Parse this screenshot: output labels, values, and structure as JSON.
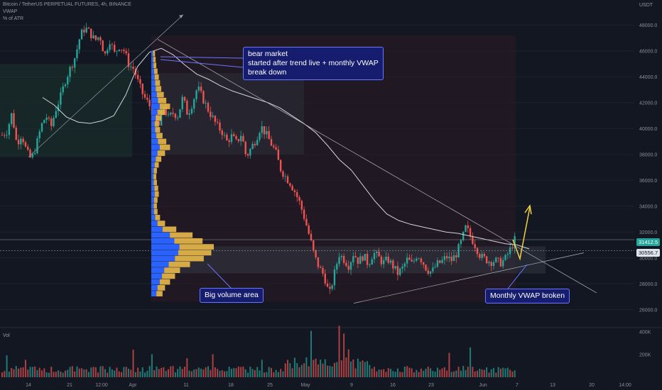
{
  "header": {
    "symbol": "Bitcoin / TetherUS PERPETUAL FUTURES, 4h, BINANCE",
    "indicator1": "VWAP",
    "indicator2": "% of ATR"
  },
  "axis": {
    "currency": "USDT",
    "volume_label": "Vol"
  },
  "annotations": {
    "bear_market": [
      "bear market",
      "started after trend live + monthly VWAP",
      "break down"
    ],
    "big_volume": "Big volume area",
    "vwap_broken": "Monthly VWAP broken"
  },
  "price_tags": {
    "green": "31412.5",
    "white": "30556.7"
  },
  "colors": {
    "background": "#131722",
    "up": "#26a69a",
    "down": "#ef5350",
    "callout_bg": "#161d6e",
    "callout_border": "#6b76ff",
    "arrow": "#f5d142",
    "volume_profile": "#2962ff",
    "volume_profile_hv": "#e9b949"
  },
  "chart_data": {
    "type": "candlestick",
    "price_axis": {
      "ticks": [
        "48000.0",
        "46000.0",
        "44000.0",
        "42000.0",
        "40000.0",
        "38000.0",
        "36000.0",
        "34000.0",
        "32000.0",
        "30000.0",
        "28000.0",
        "26000.0"
      ],
      "range": [
        25000,
        49500
      ]
    },
    "volume_axis": {
      "ticks": [
        "400K",
        "200K"
      ],
      "range": [
        0,
        420000
      ]
    },
    "time_axis": {
      "ticks": [
        "14",
        "21",
        "12:00",
        "Apr",
        "11",
        "18",
        "25",
        "May",
        "9",
        "16",
        "23",
        "Jun",
        "7",
        "13",
        "20",
        "14:00"
      ]
    },
    "series": [
      {
        "name": "price_path",
        "values": [
          39500,
          39800,
          41200,
          38800,
          39600,
          38200,
          37600,
          38700,
          40200,
          41000,
          40100,
          41500,
          42500,
          43800,
          44700,
          45600,
          47200,
          47800,
          47400,
          46800,
          47200,
          45600,
          46900,
          45800,
          46400,
          46000,
          44900,
          44600,
          43400,
          42500,
          41900,
          41200,
          40000,
          41800,
          40800,
          41200,
          41000,
          42400,
          41100,
          42000,
          43200,
          42400,
          41600,
          40900,
          40200,
          39800,
          39000,
          39400,
          38900,
          39600,
          37800,
          38500,
          39200,
          40200,
          39600,
          38900,
          38200,
          36900,
          36300,
          35800,
          35100,
          34200,
          33000,
          31600,
          30100,
          29200,
          28600,
          27100,
          28700,
          30300,
          29900,
          29400,
          30400,
          29700,
          30200,
          29500,
          30400,
          30100,
          29600,
          29900,
          29400,
          28800,
          29200,
          29900,
          29500,
          30300,
          29800,
          29100,
          28900,
          29500,
          29700,
          30100,
          29800,
          30300,
          31200,
          32400,
          31600,
          30900,
          30100,
          29900,
          29700,
          29800,
          29600,
          29900,
          30600,
          31400
        ],
        "volatility": 420
      },
      {
        "name": "VWAP",
        "values": [
          42400,
          41800,
          40900,
          40500,
          40400,
          40600,
          41000,
          42600,
          44800,
          45900,
          46200,
          45700,
          44900,
          44200,
          43800,
          43300,
          42900,
          42600,
          42300,
          42000,
          41600,
          41000,
          40400,
          39700,
          38700,
          37600,
          36800,
          35600,
          34400,
          33400,
          32900,
          32600,
          32400,
          32200,
          32000,
          31900,
          31700,
          31500,
          31300,
          31100,
          31000,
          30700
        ]
      }
    ],
    "volume_profile_bins": {
      "price_range": [
        27000,
        46000
      ],
      "relative_volume": [
        0.18,
        0.22,
        0.3,
        0.38,
        0.46,
        0.62,
        0.84,
        0.96,
        1.0,
        0.82,
        0.66,
        0.4,
        0.22,
        0.14,
        0.1,
        0.09,
        0.1,
        0.12,
        0.11,
        0.09,
        0.08,
        0.09,
        0.12,
        0.16,
        0.22,
        0.3,
        0.24,
        0.18,
        0.14,
        0.12,
        0.16,
        0.22,
        0.3,
        0.24,
        0.2,
        0.16,
        0.14,
        0.12,
        0.1,
        0.08,
        0.07,
        0.06
      ]
    }
  }
}
